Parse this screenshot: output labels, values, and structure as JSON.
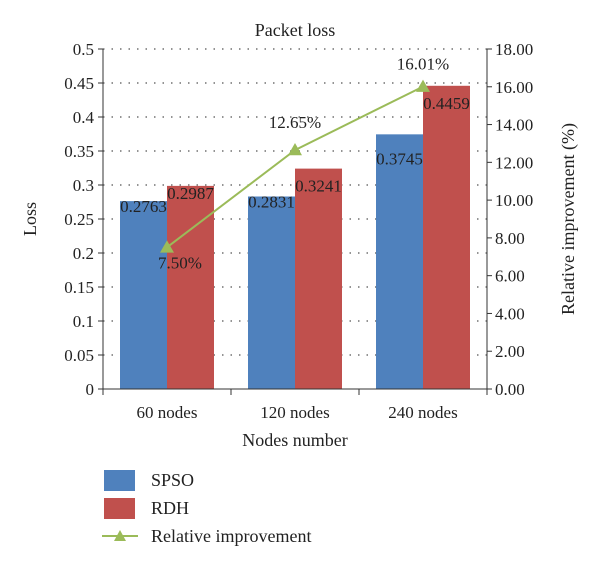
{
  "chart_data": {
    "type": "bar",
    "title": "Packet loss",
    "xlabel": "Nodes number",
    "ylabel": "Loss",
    "y2label": "Relative improvement (%)",
    "categories": [
      "60 nodes",
      "120 nodes",
      "240 nodes"
    ],
    "ylim": [
      0,
      0.5
    ],
    "y2lim": [
      0,
      18
    ],
    "yticks": [
      "0",
      "0.05",
      "0.1",
      "0.15",
      "0.2",
      "0.25",
      "0.3",
      "0.35",
      "0.4",
      "0.45",
      "0.5"
    ],
    "y2ticks": [
      "0.00",
      "2.00",
      "4.00",
      "6.00",
      "8.00",
      "10.00",
      "12.00",
      "14.00",
      "16.00",
      "18.00"
    ],
    "grid": "horizontal-dotted",
    "legend_position": "bottom",
    "series": [
      {
        "name": "SPSO",
        "kind": "bar",
        "axis": "left",
        "color": "#4f81bd",
        "values": [
          0.2763,
          0.2831,
          0.3745
        ],
        "labels": [
          "0.2763",
          "0.2831",
          "0.3745"
        ]
      },
      {
        "name": "RDH",
        "kind": "bar",
        "axis": "left",
        "color": "#c0504d",
        "values": [
          0.2987,
          0.3241,
          0.4459
        ],
        "labels": [
          "0.2987",
          "0.3241",
          "0.4459"
        ]
      },
      {
        "name": "Relative improvement",
        "kind": "line",
        "axis": "right",
        "color": "#9bbb59",
        "values": [
          7.5,
          12.65,
          16.01
        ],
        "labels": [
          "7.50%",
          "12.65%",
          "16.01%"
        ]
      }
    ]
  }
}
